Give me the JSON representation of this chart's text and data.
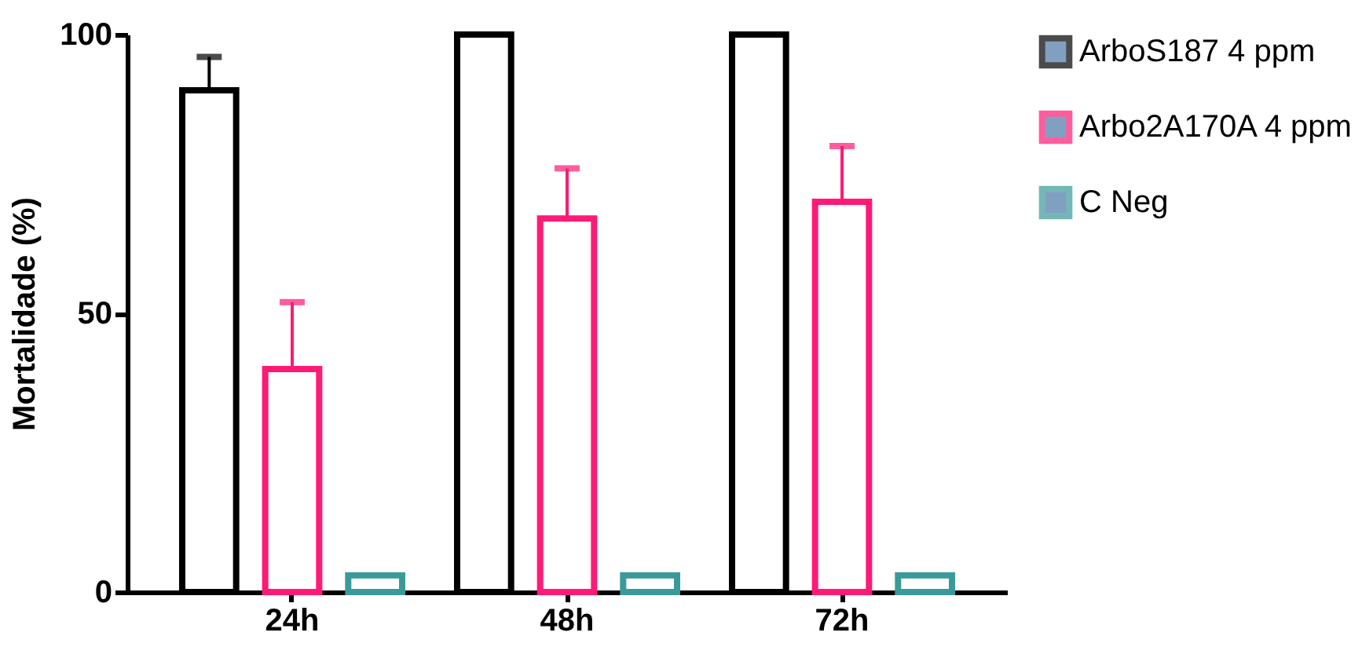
{
  "chart_data": {
    "type": "bar",
    "ylabel": "Mortalidade (%)",
    "categories": [
      "24h",
      "48h",
      "72h"
    ],
    "series": [
      {
        "name": "ArboS187 4 ppm",
        "color": "#000000",
        "values": [
          90,
          100,
          100
        ],
        "errors": [
          6,
          null,
          null
        ]
      },
      {
        "name": "Arbo2A170A 4 ppm",
        "color": "#ff1a75",
        "values": [
          40,
          67,
          70
        ],
        "errors": [
          12,
          9,
          10
        ]
      },
      {
        "name": "C Neg",
        "color": "#3a9a9a",
        "values": [
          3,
          3,
          3
        ]
      }
    ],
    "ylim": [
      0,
      100
    ],
    "yticks": [
      0,
      50,
      100
    ],
    "grid": false,
    "legend": "right"
  }
}
